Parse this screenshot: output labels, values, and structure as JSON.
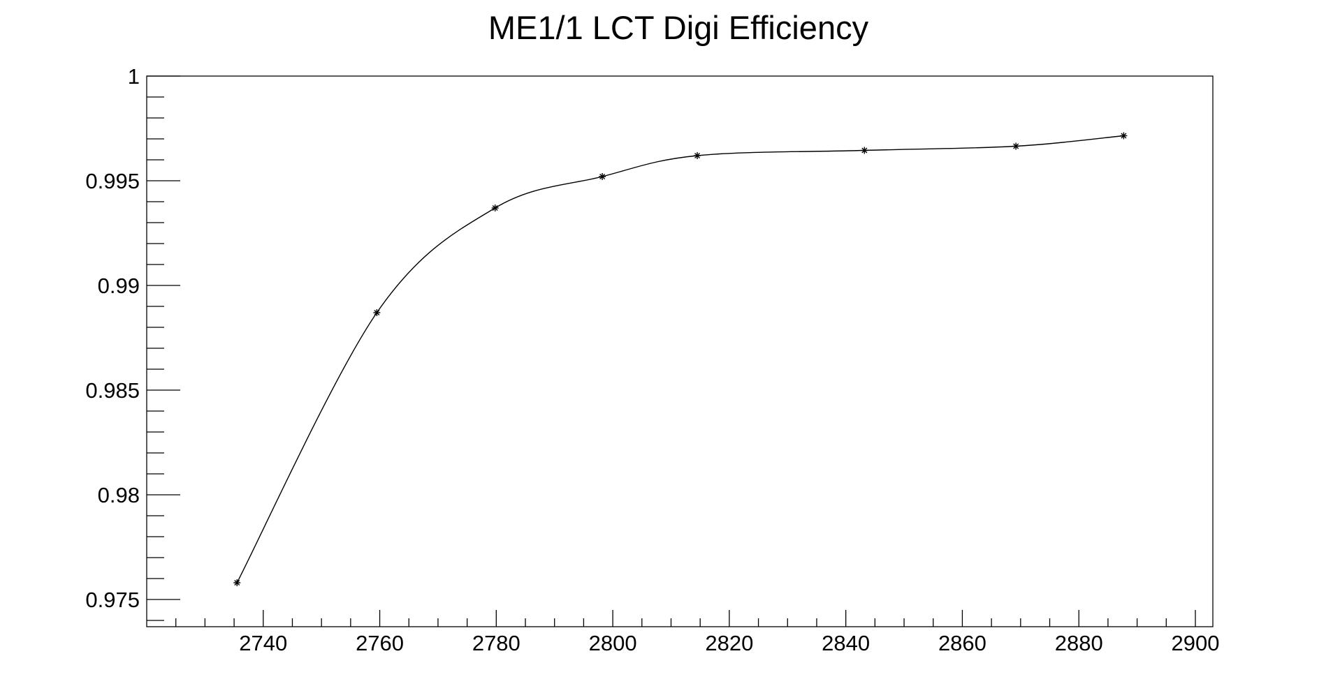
{
  "chart_data": {
    "type": "line",
    "title": "ME1/1 LCT Digi Efficiency",
    "xlabel": "",
    "ylabel": "",
    "xlim": [
      2720,
      2903
    ],
    "ylim": [
      0.9737,
      1.0
    ],
    "x_ticks": [
      2740,
      2760,
      2780,
      2800,
      2820,
      2840,
      2860,
      2880,
      2900
    ],
    "y_ticks": [
      0.975,
      0.98,
      0.985,
      0.99,
      0.995,
      1
    ],
    "x_tick_labels": [
      "2740",
      "2760",
      "2780",
      "2800",
      "2820",
      "2840",
      "2860",
      "2880",
      "2900"
    ],
    "y_tick_labels": [
      "0.975",
      "0.98",
      "0.985",
      "0.99",
      "0.995",
      "1"
    ],
    "x_minor_step": 5,
    "y_minor_step": 0.001,
    "grid": false,
    "marker": "asterisk",
    "series": [
      {
        "x": [
          2735.5,
          2759.5,
          2779.8,
          2798.2,
          2814.5,
          2843.2,
          2869.2,
          2887.7
        ],
        "y": [
          0.9758,
          0.9887,
          0.9937,
          0.9952,
          0.9962,
          0.99645,
          0.99665,
          0.99715
        ]
      }
    ]
  }
}
